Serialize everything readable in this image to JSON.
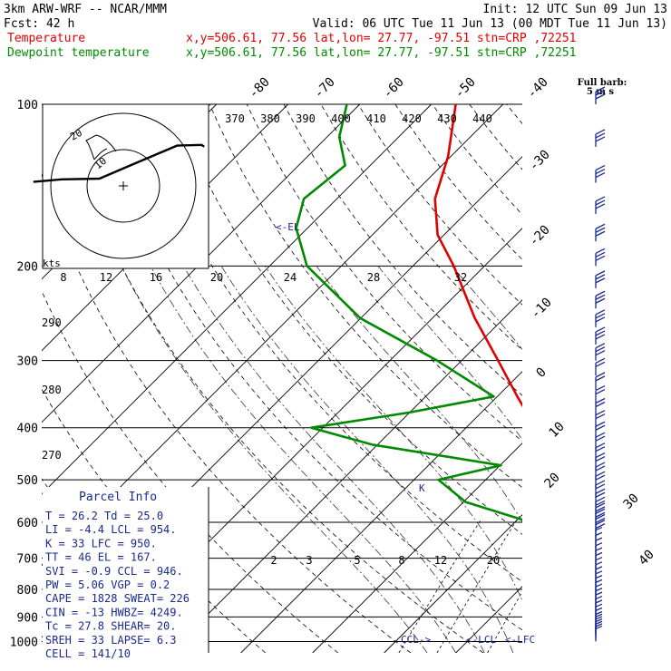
{
  "header": {
    "model": "3km ARW-WRF -- NCAR/MMM",
    "init": "Init: 12 UTC Sun 09 Jun 13",
    "fcst": "Fcst:   42 h",
    "valid": "Valid: 06 UTC Tue 11 Jun 13 (00 MDT Tue 11 Jun 13)",
    "temperature_label": "Temperature",
    "dewpoint_label": "Dewpoint temperature",
    "temperature_location": "x,y=506.61, 77.56   lat,lon= 27.77, -97.51   stn=CRP ,72251",
    "dewpoint_location": "x,y=506.61, 77.56   lat,lon= 27.77, -97.51   stn=CRP ,72251",
    "full_barb": "Full barb:",
    "full_barb_units": "5 m s"
  },
  "colors": {
    "temperature": "#e00000",
    "dewpoint": "#008a00",
    "wind_barb": "#1a2a8c",
    "isobar": "#000000",
    "isotherm": "#000000",
    "mixing_ratio": "#000000"
  },
  "chart_data": {
    "type": "line",
    "title": "3km ARW-WRF -- NCAR/MMM",
    "xlabel": "",
    "ylabel": "",
    "pressure_levels": [
      100,
      200,
      300,
      400,
      500,
      600,
      700,
      800,
      900,
      1000
    ],
    "pressure_labels": [
      "100",
      "200",
      "300",
      "400",
      "500",
      "600",
      "700",
      "800",
      "900",
      "1000"
    ],
    "isotherm_labels_top": [
      "-80",
      "-70",
      "-60",
      "-50",
      "-40"
    ],
    "isotherm_labels_right": [
      "-30",
      "-20",
      "-10",
      "0",
      "10",
      "20",
      "30",
      "40"
    ],
    "mixing_ratio_labels": [
      "2",
      "3",
      "5",
      "8",
      "12",
      "20"
    ],
    "theta_labels": [
      "370",
      "380",
      "390",
      "400",
      "410",
      "420",
      "430",
      "440"
    ],
    "theta_left_labels": [
      "290",
      "280",
      "270"
    ],
    "hodograph_speed_labels": [
      "8",
      "12",
      "16",
      "20",
      "24",
      "28",
      "32"
    ],
    "hodograph_units": "kts",
    "hodograph_ring_labels": [
      "20",
      "10"
    ],
    "markers": [
      "<-EL",
      "CCL->",
      "<-LCL",
      "<-LFC"
    ],
    "series": [
      {
        "name": "Temperature",
        "points": [
          [
            1000,
            26.2
          ],
          [
            970,
            24
          ],
          [
            950,
            22.8
          ],
          [
            900,
            19.8
          ],
          [
            850,
            17.3
          ],
          [
            800,
            14.6
          ],
          [
            750,
            10.9
          ],
          [
            700,
            7.2
          ],
          [
            650,
            3.3
          ],
          [
            600,
            -0.7
          ],
          [
            550,
            -4.9
          ],
          [
            500,
            -9.6
          ],
          [
            450,
            -14.7
          ],
          [
            400,
            -20.3
          ],
          [
            350,
            -27.2
          ],
          [
            300,
            -34.9
          ],
          [
            250,
            -44.1
          ],
          [
            200,
            -54.3
          ],
          [
            175,
            -60.9
          ],
          [
            150,
            -66.3
          ],
          [
            125,
            -70.4
          ],
          [
            100,
            -76.6
          ]
        ]
      },
      {
        "name": "Dewpoint temperature",
        "points": [
          [
            1000,
            25.0
          ],
          [
            970,
            22.5
          ],
          [
            950,
            21.5
          ],
          [
            900,
            18.3
          ],
          [
            850,
            13.8
          ],
          [
            800,
            8.0
          ],
          [
            750,
            2.1
          ],
          [
            700,
            -2.0
          ],
          [
            650,
            -4.4
          ],
          [
            600,
            -7.8
          ],
          [
            550,
            -19.7
          ],
          [
            500,
            -26.6
          ],
          [
            470,
            -19.9
          ],
          [
            430,
            -40.8
          ],
          [
            400,
            -51.6
          ],
          [
            375,
            -40.2
          ],
          [
            350,
            -30.5
          ],
          [
            300,
            -43.4
          ],
          [
            250,
            -60.1
          ],
          [
            200,
            -74.8
          ],
          [
            170,
            -81.6
          ],
          [
            150,
            -84.6
          ],
          [
            130,
            -83.5
          ],
          [
            115,
            -88.3
          ],
          [
            100,
            -91.8
          ]
        ]
      }
    ],
    "hodograph_points_kts": [
      [
        -24.8,
        1.1
      ],
      [
        -17,
        1.8
      ],
      [
        -6.6,
        2
      ],
      [
        4.9,
        6.9
      ],
      [
        14.8,
        11.1
      ],
      [
        21.6,
        11.3
      ],
      [
        22.3,
        10.8
      ]
    ],
    "wind_barb_pressures": [
      1000,
      990,
      980,
      970,
      960,
      950,
      940,
      925,
      910,
      895,
      880,
      865,
      850,
      835,
      820,
      805,
      790,
      775,
      760,
      745,
      730,
      715,
      700,
      685,
      670,
      655,
      640,
      625,
      610,
      595,
      580,
      560,
      540,
      520,
      500,
      480,
      460,
      440,
      420,
      400,
      380,
      360,
      340,
      320,
      300,
      280,
      260,
      240,
      220,
      200,
      180,
      160,
      140,
      120,
      100
    ],
    "ylim": [
      100,
      1000
    ],
    "pressure_scale": "log"
  },
  "parcel_info": {
    "title": "Parcel Info",
    "rows": [
      "T   =    26.2  Td =  25.0",
      "LI  =    -4.4  LCL =  954.",
      "K   =      33  LFC =  950.",
      "TT  =      46  EL  =  167.",
      "SVI =    -0.9  CCL =  946.",
      "PW  =    5.06  VGP =   0.2",
      "CAPE =  1828  SWEAT=  226",
      "CIN  =   -13  HWBZ= 4249.",
      "Tc  =   27.8  SHEAR=  20.",
      "SREH =    33  LAPSE=  6.3",
      "CELL = 141/10"
    ]
  }
}
